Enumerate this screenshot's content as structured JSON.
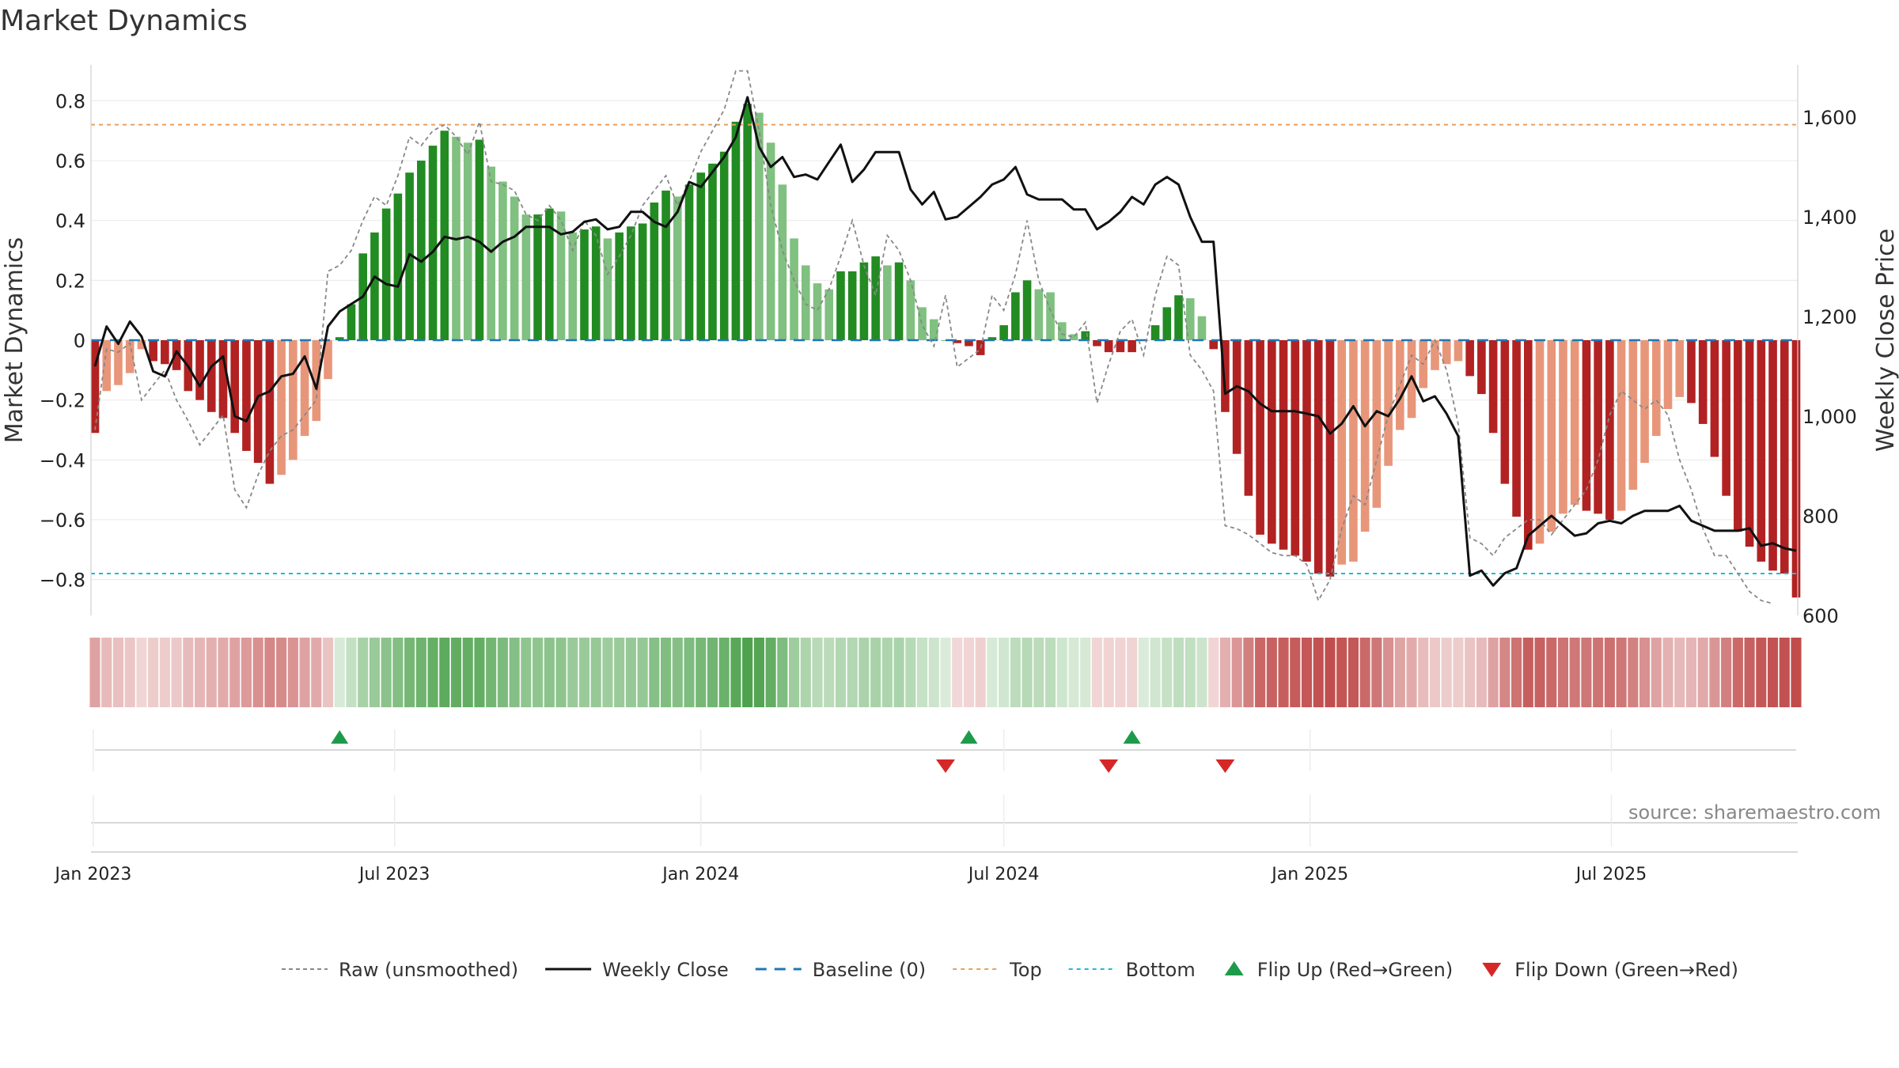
{
  "title": "Market Dynamics",
  "source": "source: sharemaestro.com",
  "colors": {
    "strong_green": "#228b22",
    "light_green": "#80c080",
    "strong_red": "#b22222",
    "light_red": "#e8967a",
    "close_line": "#111111",
    "raw_line": "#888888",
    "baseline": "#1f77b4",
    "top": "#e8a05c",
    "bottom": "#17becf",
    "flip_up": "#1e9b4a",
    "flip_down": "#d62728"
  },
  "chart_data": {
    "type": "bar",
    "start_date": "2023-01-02",
    "period": "weekly",
    "left_axis": {
      "label": "Market Dynamics",
      "ylim": [
        -0.92,
        0.92
      ],
      "ticks": [
        -0.8,
        -0.6,
        -0.4,
        -0.2,
        0,
        0.2,
        0.4,
        0.6,
        0.8
      ]
    },
    "right_axis": {
      "label": "Weekly Close Price",
      "ylim": [
        600,
        1705
      ],
      "ticks": [
        600,
        800,
        1000,
        1200,
        1400,
        1600
      ],
      "tick_labels": [
        "600",
        "800",
        "1,000",
        "1,200",
        "1,400",
        "1,600"
      ]
    },
    "x_ticks": [
      {
        "date": "2023-01-01",
        "label": "Jan 2023"
      },
      {
        "date": "2023-07-01",
        "label": "Jul 2023"
      },
      {
        "date": "2024-01-01",
        "label": "Jan 2024"
      },
      {
        "date": "2024-07-01",
        "label": "Jul 2024"
      },
      {
        "date": "2025-01-01",
        "label": "Jan 2025"
      },
      {
        "date": "2025-07-01",
        "label": "Jul 2025"
      }
    ],
    "reference_lines": {
      "baseline": 0,
      "top": 0.72,
      "bottom": -0.78
    },
    "series": [
      {
        "name": "Market Dynamics",
        "values": [
          -0.31,
          -0.17,
          -0.15,
          -0.11,
          -0.03,
          -0.07,
          -0.08,
          -0.1,
          -0.17,
          -0.2,
          -0.24,
          -0.26,
          -0.31,
          -0.37,
          -0.41,
          -0.48,
          -0.45,
          -0.4,
          -0.32,
          -0.27,
          -0.13,
          0.01,
          0.12,
          0.29,
          0.36,
          0.44,
          0.49,
          0.56,
          0.6,
          0.65,
          0.7,
          0.68,
          0.66,
          0.67,
          0.58,
          0.53,
          0.48,
          0.42,
          0.42,
          0.44,
          0.43,
          0.36,
          0.37,
          0.38,
          0.34,
          0.36,
          0.38,
          0.39,
          0.46,
          0.5,
          0.48,
          0.52,
          0.56,
          0.59,
          0.63,
          0.73,
          0.79,
          0.76,
          0.66,
          0.52,
          0.34,
          0.25,
          0.19,
          0.17,
          0.23,
          0.23,
          0.26,
          0.28,
          0.25,
          0.26,
          0.2,
          0.11,
          0.07,
          0.0,
          -0.01,
          -0.02,
          -0.05,
          0.01,
          0.05,
          0.16,
          0.2,
          0.17,
          0.16,
          0.06,
          0.02,
          0.03,
          -0.02,
          -0.04,
          -0.04,
          -0.04,
          0.0,
          0.05,
          0.11,
          0.15,
          0.14,
          0.08,
          -0.03,
          -0.24,
          -0.38,
          -0.52,
          -0.65,
          -0.68,
          -0.7,
          -0.72,
          -0.74,
          -0.78,
          -0.79,
          -0.75,
          -0.74,
          -0.64,
          -0.56,
          -0.42,
          -0.3,
          -0.26,
          -0.16,
          -0.1,
          -0.08,
          -0.07,
          -0.12,
          -0.18,
          -0.31,
          -0.48,
          -0.59,
          -0.7,
          -0.68,
          -0.64,
          -0.58,
          -0.55,
          -0.57,
          -0.58,
          -0.6,
          -0.57,
          -0.5,
          -0.41,
          -0.32,
          -0.23,
          -0.19,
          -0.21,
          -0.28,
          -0.39,
          -0.52,
          -0.64,
          -0.69,
          -0.74,
          -0.77,
          -0.78,
          -0.86
        ]
      },
      {
        "name": "Raw (unsmoothed)",
        "values": [
          -0.3,
          -0.03,
          -0.04,
          -0.01,
          -0.2,
          -0.15,
          -0.1,
          -0.2,
          -0.27,
          -0.35,
          -0.3,
          -0.25,
          -0.5,
          -0.56,
          -0.45,
          -0.37,
          -0.32,
          -0.3,
          -0.25,
          -0.2,
          0.23,
          0.25,
          0.3,
          0.4,
          0.48,
          0.45,
          0.55,
          0.68,
          0.65,
          0.7,
          0.72,
          0.68,
          0.62,
          0.73,
          0.53,
          0.52,
          0.5,
          0.42,
          0.4,
          0.45,
          0.4,
          0.3,
          0.4,
          0.35,
          0.22,
          0.28,
          0.35,
          0.45,
          0.5,
          0.55,
          0.45,
          0.53,
          0.63,
          0.7,
          0.77,
          0.9,
          0.9,
          0.7,
          0.45,
          0.3,
          0.2,
          0.12,
          0.1,
          0.17,
          0.28,
          0.4,
          0.25,
          0.15,
          0.35,
          0.3,
          0.2,
          0.05,
          -0.02,
          0.15,
          -0.09,
          -0.06,
          -0.03,
          0.15,
          0.1,
          0.22,
          0.4,
          0.2,
          0.1,
          0.02,
          0.01,
          0.06,
          -0.21,
          -0.08,
          0.03,
          0.07,
          -0.05,
          0.15,
          0.28,
          0.25,
          -0.05,
          -0.1,
          -0.17,
          -0.62,
          -0.63,
          -0.65,
          -0.68,
          -0.71,
          -0.72,
          -0.72,
          -0.75,
          -0.87,
          -0.8,
          -0.63,
          -0.52,
          -0.55,
          -0.4,
          -0.25,
          -0.15,
          -0.05,
          -0.08,
          0.0,
          -0.1,
          -0.28,
          -0.66,
          -0.68,
          -0.72,
          -0.66,
          -0.63,
          -0.6,
          -0.6,
          -0.65,
          -0.6,
          -0.55,
          -0.5,
          -0.4,
          -0.25,
          -0.17,
          -0.2,
          -0.23,
          -0.2,
          -0.25,
          -0.4,
          -0.5,
          -0.63,
          -0.72,
          -0.72,
          -0.78,
          -0.84,
          -0.87,
          -0.88
        ]
      },
      {
        "name": "Weekly Close",
        "values": [
          1100,
          1180,
          1145,
          1190,
          1160,
          1090,
          1080,
          1130,
          1100,
          1060,
          1100,
          1120,
          1000,
          990,
          1040,
          1050,
          1080,
          1085,
          1120,
          1055,
          1180,
          1210,
          1225,
          1240,
          1280,
          1265,
          1260,
          1325,
          1310,
          1330,
          1360,
          1355,
          1360,
          1350,
          1330,
          1350,
          1360,
          1380,
          1380,
          1380,
          1365,
          1370,
          1390,
          1395,
          1375,
          1380,
          1410,
          1410,
          1390,
          1380,
          1410,
          1470,
          1460,
          1490,
          1520,
          1560,
          1640,
          1540,
          1500,
          1520,
          1480,
          1485,
          1475,
          1510,
          1545,
          1470,
          1495,
          1530,
          1530,
          1530,
          1455,
          1425,
          1450,
          1395,
          1400,
          1420,
          1440,
          1465,
          1475,
          1500,
          1445,
          1435,
          1435,
          1435,
          1415,
          1415,
          1375,
          1390,
          1410,
          1440,
          1425,
          1465,
          1480,
          1465,
          1400,
          1350,
          1350,
          1045,
          1060,
          1050,
          1025,
          1010,
          1010,
          1010,
          1005,
          1000,
          965,
          985,
          1020,
          980,
          1010,
          1000,
          1035,
          1080,
          1030,
          1040,
          1005,
          960,
          680,
          690,
          660,
          685,
          695,
          760,
          780,
          800,
          780,
          760,
          765,
          785,
          790,
          785,
          800,
          810,
          810,
          810,
          820,
          790,
          780,
          770,
          770,
          770,
          775,
          740,
          745,
          735,
          730
        ]
      }
    ],
    "flip_up_weeks": [
      21,
      75,
      89
    ],
    "flip_down_weeks": [
      73,
      87,
      97
    ],
    "legend": [
      {
        "label": "Raw (unsmoothed)",
        "type": "raw"
      },
      {
        "label": "Weekly Close",
        "type": "close"
      },
      {
        "label": "Baseline (0)",
        "type": "baseline"
      },
      {
        "label": "Top",
        "type": "top"
      },
      {
        "label": "Bottom",
        "type": "bottom"
      },
      {
        "label": "Flip Up (Red→Green)",
        "type": "up"
      },
      {
        "label": "Flip Down (Green→Red)",
        "type": "down"
      }
    ]
  }
}
